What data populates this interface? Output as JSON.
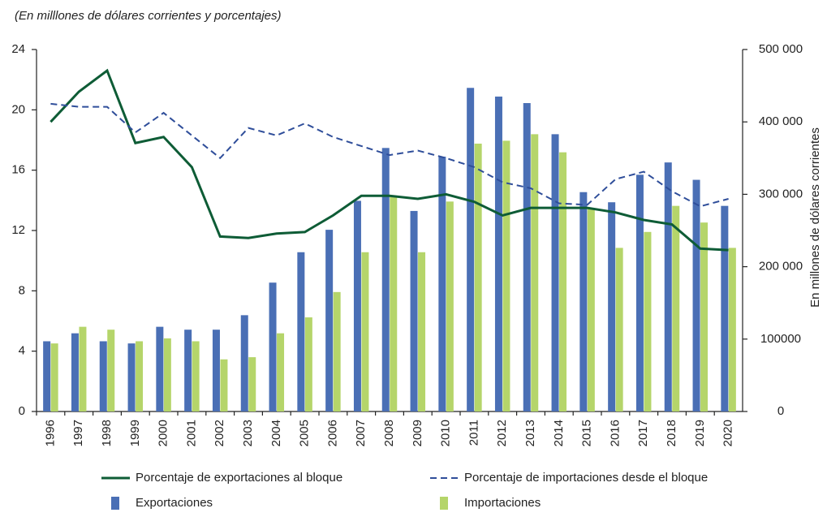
{
  "chart_data": {
    "type": "combo",
    "subtitle": "(En milllones de dólares corrientes y porcentajes)",
    "y2_label": "En millones de dólares corrientes",
    "categories": [
      "1996",
      "1997",
      "1998",
      "1999",
      "2000",
      "2001",
      "2002",
      "2003",
      "2004",
      "2005",
      "2006",
      "2007",
      "2008",
      "2009",
      "2010",
      "2011",
      "2012",
      "2013",
      "2014",
      "2015",
      "2016",
      "2017",
      "2018",
      "2019",
      "2020"
    ],
    "ylim": [
      0,
      24
    ],
    "yticks": [
      0,
      4,
      8,
      12,
      16,
      20,
      24
    ],
    "y2lim": [
      0,
      500000
    ],
    "y2ticks": [
      0,
      100000,
      {
        "value": 200000,
        "label": "200 000"
      },
      {
        "value": 300000,
        "label": "300 000"
      },
      {
        "value": 400000,
        "label": "400 000"
      },
      {
        "value": 500000,
        "label": "500 000"
      }
    ],
    "series": [
      {
        "name": "Porcentaje de exportaciones al bloque",
        "type": "line",
        "dash": false,
        "color": "#0e5c36",
        "values": [
          19.2,
          21.2,
          22.6,
          17.8,
          18.2,
          16.2,
          11.6,
          11.5,
          11.8,
          11.9,
          13,
          14.3,
          14.3,
          14.1,
          14.4,
          13.9,
          13,
          13.5,
          13.5,
          13.5,
          13.2,
          12.7,
          12.4,
          10.8,
          10.7
        ]
      },
      {
        "name": "Porcentaje de importaciones desde el bloque",
        "type": "line",
        "dash": true,
        "color": "#2f4e9a",
        "values": [
          20.4,
          20.2,
          20.2,
          18.5,
          19.8,
          18.3,
          16.8,
          18.8,
          18.3,
          19.1,
          18.2,
          17.6,
          17,
          17.3,
          16.8,
          16.2,
          15.2,
          14.8,
          13.8,
          13.7,
          15.4,
          15.9,
          14.6,
          13.6,
          14.1
        ]
      },
      {
        "name": "Exportaciones",
        "type": "bar",
        "axis": "y2",
        "color": "#4a6fb5",
        "values": [
          97000,
          108000,
          97000,
          94000,
          117000,
          113000,
          113000,
          133000,
          178000,
          220000,
          251000,
          291000,
          364000,
          277000,
          352000,
          447000,
          435000,
          426000,
          383000,
          303000,
          289000,
          327000,
          344000,
          320000,
          284000
        ]
      },
      {
        "name": "Importaciones",
        "type": "bar",
        "axis": "y2",
        "color": "#b5d56a",
        "values": [
          94000,
          117000,
          113000,
          97000,
          101000,
          97000,
          72000,
          75000,
          108000,
          130000,
          165000,
          220000,
          298000,
          220000,
          290000,
          370000,
          374000,
          383000,
          358000,
          280000,
          226000,
          248000,
          284000,
          261000,
          226000
        ]
      }
    ]
  }
}
